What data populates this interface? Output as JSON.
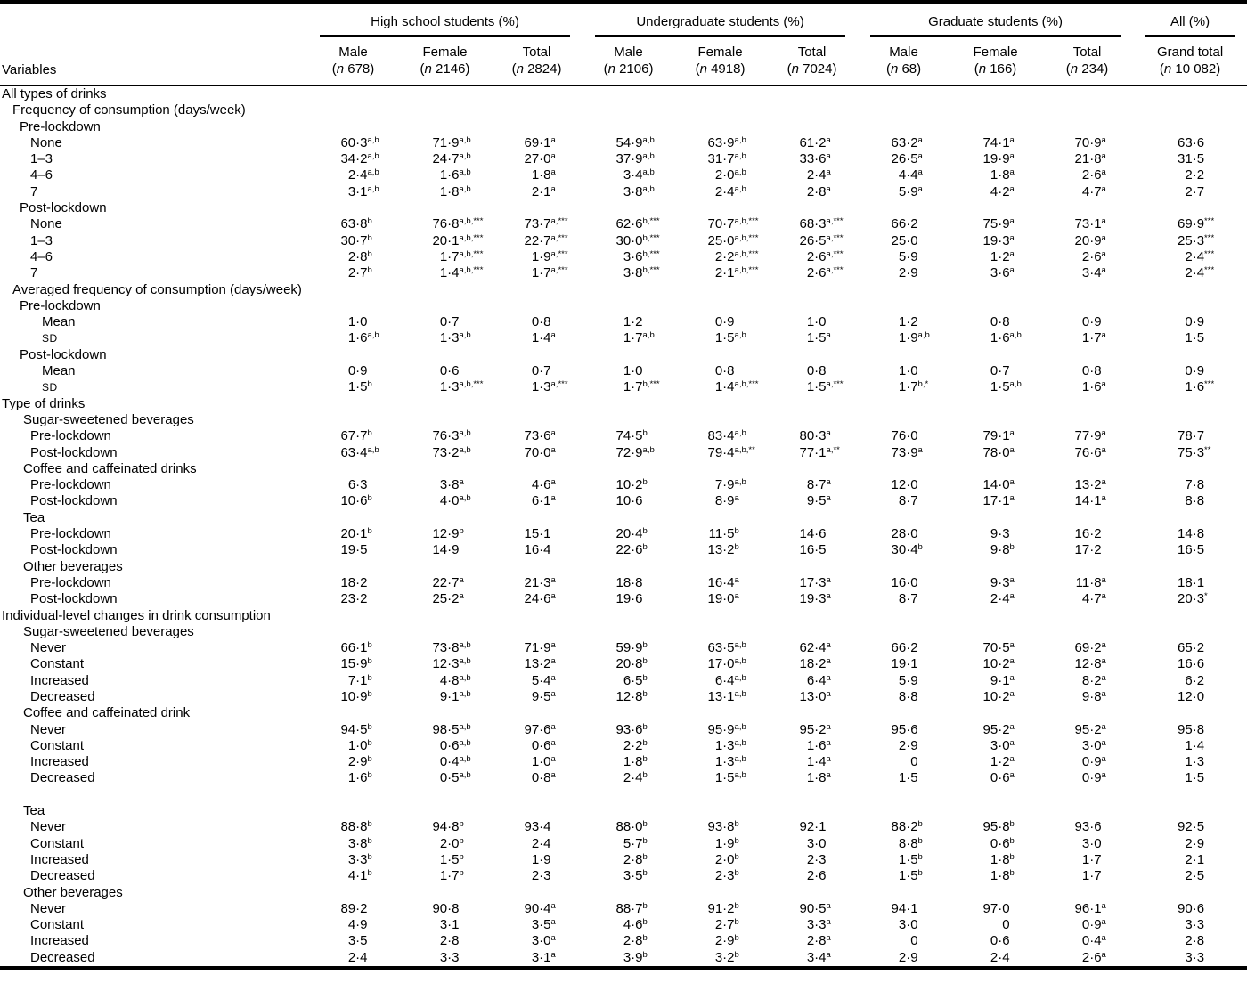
{
  "table": {
    "stub_header": "Variables",
    "groups": [
      {
        "label": "High school students (%)",
        "span": 3
      },
      {
        "label": "Undergraduate students (%)",
        "span": 3
      },
      {
        "label": "Graduate students (%)",
        "span": 3
      },
      {
        "label": "All (%)",
        "span": 1
      }
    ],
    "columns": [
      {
        "label": "Male",
        "n": "(n 678)"
      },
      {
        "label": "Female",
        "n": "(n 2146)"
      },
      {
        "label": "Total",
        "n": "(n 2824)"
      },
      {
        "label": "Male",
        "n": "(n 2106)"
      },
      {
        "label": "Female",
        "n": "(n 4918)"
      },
      {
        "label": "Total",
        "n": "(n 7024)"
      },
      {
        "label": "Male",
        "n": "(n 68)"
      },
      {
        "label": "Female",
        "n": "(n 166)"
      },
      {
        "label": "Total",
        "n": "(n 234)"
      },
      {
        "label": "Grand total",
        "n": "(n 10 082)"
      }
    ],
    "rows": [
      {
        "label": "All types of drinks",
        "indent": 2
      },
      {
        "label": "Frequency of consumption (days/week)",
        "indent": 14
      },
      {
        "label": "Pre-lockdown",
        "indent": 22
      },
      {
        "label": "None",
        "indent": 34,
        "cells": [
          "60·3^a,b",
          "71·9^a,b",
          "69·1^a",
          "54·9^a,b",
          "63·9^a,b",
          "61·2^a",
          "63·2^a",
          "74·1^a",
          "70·9^a",
          "63·6"
        ]
      },
      {
        "label": "1–3",
        "indent": 34,
        "cells": [
          "34·2^a,b",
          "24·7^a,b",
          "27·0^a",
          "37·9^a,b",
          "31·7^a,b",
          "33·6^a",
          "26·5^a",
          "19·9^a",
          "21·8^a",
          "31·5"
        ]
      },
      {
        "label": "4–6",
        "indent": 34,
        "cells": [
          "2·4^a,b",
          "1·6^a,b",
          "1·8^a",
          "3·4^a,b",
          "2·0^a,b",
          "2·4^a",
          "4·4^a",
          "1·8^a",
          "2·6^a",
          "2·2"
        ]
      },
      {
        "label": "7",
        "indent": 34,
        "cells": [
          "3·1^a,b",
          "1·8^a,b",
          "2·1^a",
          "3·8^a,b",
          "2·4^a,b",
          "2·8^a",
          "5·9^a",
          "4·2^a",
          "4·7^a",
          "2·7"
        ]
      },
      {
        "label": "Post-lockdown",
        "indent": 22
      },
      {
        "label": "None",
        "indent": 34,
        "cells": [
          "63·8^b",
          "76·8^a,b,***",
          "73·7^a,***",
          "62·6^b,***",
          "70·7^a,b,***",
          "68·3^a,***",
          "66·2",
          "75·9^a",
          "73·1^a",
          "69·9^***"
        ]
      },
      {
        "label": "1–3",
        "indent": 34,
        "cells": [
          "30·7^b",
          "20·1^a,b,***",
          "22·7^a,***",
          "30·0^b,***",
          "25·0^a,b,***",
          "26·5^a,***",
          "25·0",
          "19·3^a",
          "20·9^a",
          "25·3^***"
        ]
      },
      {
        "label": "4–6",
        "indent": 34,
        "cells": [
          "2·8^b",
          "1·7^a,b,***",
          "1·9^a,***",
          "3·6^b,***",
          "2·2^a,b,***",
          "2·6^a,***",
          "5·9",
          "1·2^a",
          "2·6^a",
          "2·4^***"
        ]
      },
      {
        "label": "7",
        "indent": 34,
        "cells": [
          "2·7^b",
          "1·4^a,b,***",
          "1·7^a,***",
          "3·8^b,***",
          "2·1^a,b,***",
          "2·6^a,***",
          "2·9",
          "3·6^a",
          "3·4^a",
          "2·4^***"
        ]
      },
      {
        "label": "Averaged frequency of consumption (days/week)",
        "indent": 14
      },
      {
        "label": "Pre-lockdown",
        "indent": 22
      },
      {
        "label": "Mean",
        "indent": 47,
        "cells": [
          "1·0",
          "0·7",
          "0·8",
          "1·2",
          "0·9",
          "1·0",
          "1·2",
          "0·8",
          "0·9",
          "0·9"
        ]
      },
      {
        "label": "SD",
        "indent": 47,
        "sc": true,
        "cells": [
          "1·6^a,b",
          "1·3^a,b",
          "1·4^a",
          "1·7^a,b",
          "1·5^a,b",
          "1·5^a",
          "1·9^a,b",
          "1·6^a,b",
          "1·7^a",
          "1·5"
        ]
      },
      {
        "label": "Post-lockdown",
        "indent": 22
      },
      {
        "label": "Mean",
        "indent": 47,
        "cells": [
          "0·9",
          "0·6",
          "0·7",
          "1·0",
          "0·8",
          "0·8",
          "1·0",
          "0·7",
          "0·8",
          "0·9"
        ]
      },
      {
        "label": "SD",
        "indent": 47,
        "sc": true,
        "cells": [
          "1·5^b",
          "1·3^a,b,***",
          "1·3^a,***",
          "1·7^b,***",
          "1·4^a,b,***",
          "1·5^a,***",
          "1·7^b,*",
          "1·5^a,b",
          "1·6^a",
          "1·6^***"
        ]
      },
      {
        "label": "Type of drinks",
        "indent": 2
      },
      {
        "label": "Sugar-sweetened beverages",
        "indent": 26
      },
      {
        "label": "Pre-lockdown",
        "indent": 34,
        "cells": [
          "67·7^b",
          "76·3^a,b",
          "73·6^a",
          "74·5^b",
          "83·4^a,b",
          "80·3^a",
          "76·0",
          "79·1^a",
          "77·9^a",
          "78·7"
        ]
      },
      {
        "label": "Post-lockdown",
        "indent": 34,
        "cells": [
          "63·4^a,b",
          "73·2^a,b",
          "70·0^a",
          "72·9^a,b",
          "79·4^a,b,**",
          "77·1^a,**",
          "73·9^a",
          "78·0^a",
          "76·6^a",
          "75·3^**"
        ]
      },
      {
        "label": "Coffee and caffeinated drinks",
        "indent": 26
      },
      {
        "label": "Pre-lockdown",
        "indent": 34,
        "cells": [
          "6·3",
          "3·8^a",
          "4·6^a",
          "10·2^b",
          "7·9^a,b",
          "8·7^a",
          "12·0",
          "14·0^a",
          "13·2^a",
          "7·8"
        ]
      },
      {
        "label": "Post-lockdown",
        "indent": 34,
        "cells": [
          "10·6^b",
          "4·0^a,b",
          "6·1^a",
          "10·6",
          "8·9^a",
          "9·5^a",
          "8·7",
          "17·1^a",
          "14·1^a",
          "8·8"
        ]
      },
      {
        "label": "Tea",
        "indent": 26
      },
      {
        "label": "Pre-lockdown",
        "indent": 34,
        "cells": [
          "20·1^b",
          "12·9^b",
          "15·1",
          "20·4^b",
          "11·5^b",
          "14·6",
          "28·0",
          "9·3",
          "16·2",
          "14·8"
        ]
      },
      {
        "label": "Post-lockdown",
        "indent": 34,
        "cells": [
          "19·5",
          "14·9",
          "16·4",
          "22·6^b",
          "13·2^b",
          "16·5",
          "30·4^b",
          "9·8^b",
          "17·2",
          "16·5"
        ]
      },
      {
        "label": "Other beverages",
        "indent": 26
      },
      {
        "label": "Pre-lockdown",
        "indent": 34,
        "cells": [
          "18·2",
          "22·7^a",
          "21·3^a",
          "18·8",
          "16·4^a",
          "17·3^a",
          "16·0",
          "9·3^a",
          "11·8^a",
          "18·1"
        ]
      },
      {
        "label": "Post-lockdown",
        "indent": 34,
        "cells": [
          "23·2",
          "25·2^a",
          "24·6^a",
          "19·6",
          "19·0^a",
          "19·3^a",
          "8·7",
          "2·4^a",
          "4·7^a",
          "20·3^*"
        ]
      },
      {
        "label": "Individual-level changes in drink consumption",
        "indent": 2
      },
      {
        "label": "Sugar-sweetened beverages",
        "indent": 26
      },
      {
        "label": "Never",
        "indent": 34,
        "cells": [
          "66·1^b",
          "73·8^a,b",
          "71·9^a",
          "59·9^b",
          "63·5^a,b",
          "62·4^a",
          "66·2",
          "70·5^a",
          "69·2^a",
          "65·2"
        ]
      },
      {
        "label": "Constant",
        "indent": 34,
        "cells": [
          "15·9^b",
          "12·3^a,b",
          "13·2^a",
          "20·8^b",
          "17·0^a,b",
          "18·2^a",
          "19·1",
          "10·2^a",
          "12·8^a",
          "16·6"
        ]
      },
      {
        "label": "Increased",
        "indent": 34,
        "cells": [
          "7·1^b",
          "4·8^a,b",
          "5·4^a",
          "6·5^b",
          "6·4^a,b",
          "6·4^a",
          "5·9",
          "9·1^a",
          "8·2^a",
          "6·2"
        ]
      },
      {
        "label": "Decreased",
        "indent": 34,
        "cells": [
          "10·9^b",
          "9·1^a,b",
          "9·5^a",
          "12·8^b",
          "13·1^a,b",
          "13·0^a",
          "8·8",
          "10·2^a",
          "9·8^a",
          "12·0"
        ]
      },
      {
        "label": "Coffee and caffeinated drink",
        "indent": 26
      },
      {
        "label": "Never",
        "indent": 34,
        "cells": [
          "94·5^b",
          "98·5^a,b",
          "97·6^a",
          "93·6^b",
          "95·9^a,b",
          "95·2^a",
          "95·6",
          "95·2^a",
          "95·2^a",
          "95·8"
        ]
      },
      {
        "label": "Constant",
        "indent": 34,
        "cells": [
          "1·0^b",
          "0·6^a,b",
          "0·6^a",
          "2·2^b",
          "1·3^a,b",
          "1·6^a",
          "2·9",
          "3·0^a",
          "3·0^a",
          "1·4"
        ]
      },
      {
        "label": "Increased",
        "indent": 34,
        "cells": [
          "2·9^b",
          "0·4^a,b",
          "1·0^a",
          "1·8^b",
          "1·3^a,b",
          "1·4^a",
          "0",
          "1·2^a",
          "0·9^a",
          "1·3"
        ]
      },
      {
        "label": "Decreased",
        "indent": 34,
        "cells": [
          "1·6^b",
          "0·5^a,b",
          "0·8^a",
          "2·4^b",
          "1·5^a,b",
          "1·8^a",
          "1·5",
          "0·6^a",
          "0·9^a",
          "1·5"
        ]
      },
      {
        "label": "",
        "indent": 0,
        "spacer": true
      },
      {
        "label": "Tea",
        "indent": 26
      },
      {
        "label": "Never",
        "indent": 34,
        "cells": [
          "88·8^b",
          "94·8^b",
          "93·4",
          "88·0^b",
          "93·8^b",
          "92·1",
          "88·2^b",
          "95·8^b",
          "93·6",
          "92·5"
        ]
      },
      {
        "label": "Constant",
        "indent": 34,
        "cells": [
          "3·8^b",
          "2·0^b",
          "2·4",
          "5·7^b",
          "1·9^b",
          "3·0",
          "8·8^b",
          "0·6^b",
          "3·0",
          "2·9"
        ]
      },
      {
        "label": "Increased",
        "indent": 34,
        "cells": [
          "3·3^b",
          "1·5^b",
          "1·9",
          "2·8^b",
          "2·0^b",
          "2·3",
          "1·5^b",
          "1·8^b",
          "1·7",
          "2·1"
        ]
      },
      {
        "label": "Decreased",
        "indent": 34,
        "cells": [
          "4·1^b",
          "1·7^b",
          "2·3",
          "3·5^b",
          "2·3^b",
          "2·6",
          "1·5^b",
          "1·8^b",
          "1·7",
          "2·5"
        ]
      },
      {
        "label": "Other beverages",
        "indent": 26
      },
      {
        "label": "Never",
        "indent": 34,
        "cells": [
          "89·2",
          "90·8",
          "90·4^a",
          "88·7^b",
          "91·2^b",
          "90·5^a",
          "94·1",
          "97·0",
          "96·1^a",
          "90·6"
        ]
      },
      {
        "label": "Constant",
        "indent": 34,
        "cells": [
          "4·9",
          "3·1",
          "3·5^a",
          "4·6^b",
          "2·7^b",
          "3·3^a",
          "3·0",
          "0",
          "0·9^a",
          "3·3"
        ]
      },
      {
        "label": "Increased",
        "indent": 34,
        "cells": [
          "3·5",
          "2·8",
          "3·0^a",
          "2·8^b",
          "2·9^b",
          "2·8^a",
          "0",
          "0·6",
          "0·4^a",
          "2·8"
        ]
      },
      {
        "label": "Decreased",
        "indent": 34,
        "cells": [
          "2·4",
          "3·3",
          "3·1^a",
          "3·9^b",
          "3·2^b",
          "3·4^a",
          "2·9",
          "2·4",
          "2·6^a",
          "3·3"
        ]
      }
    ]
  }
}
